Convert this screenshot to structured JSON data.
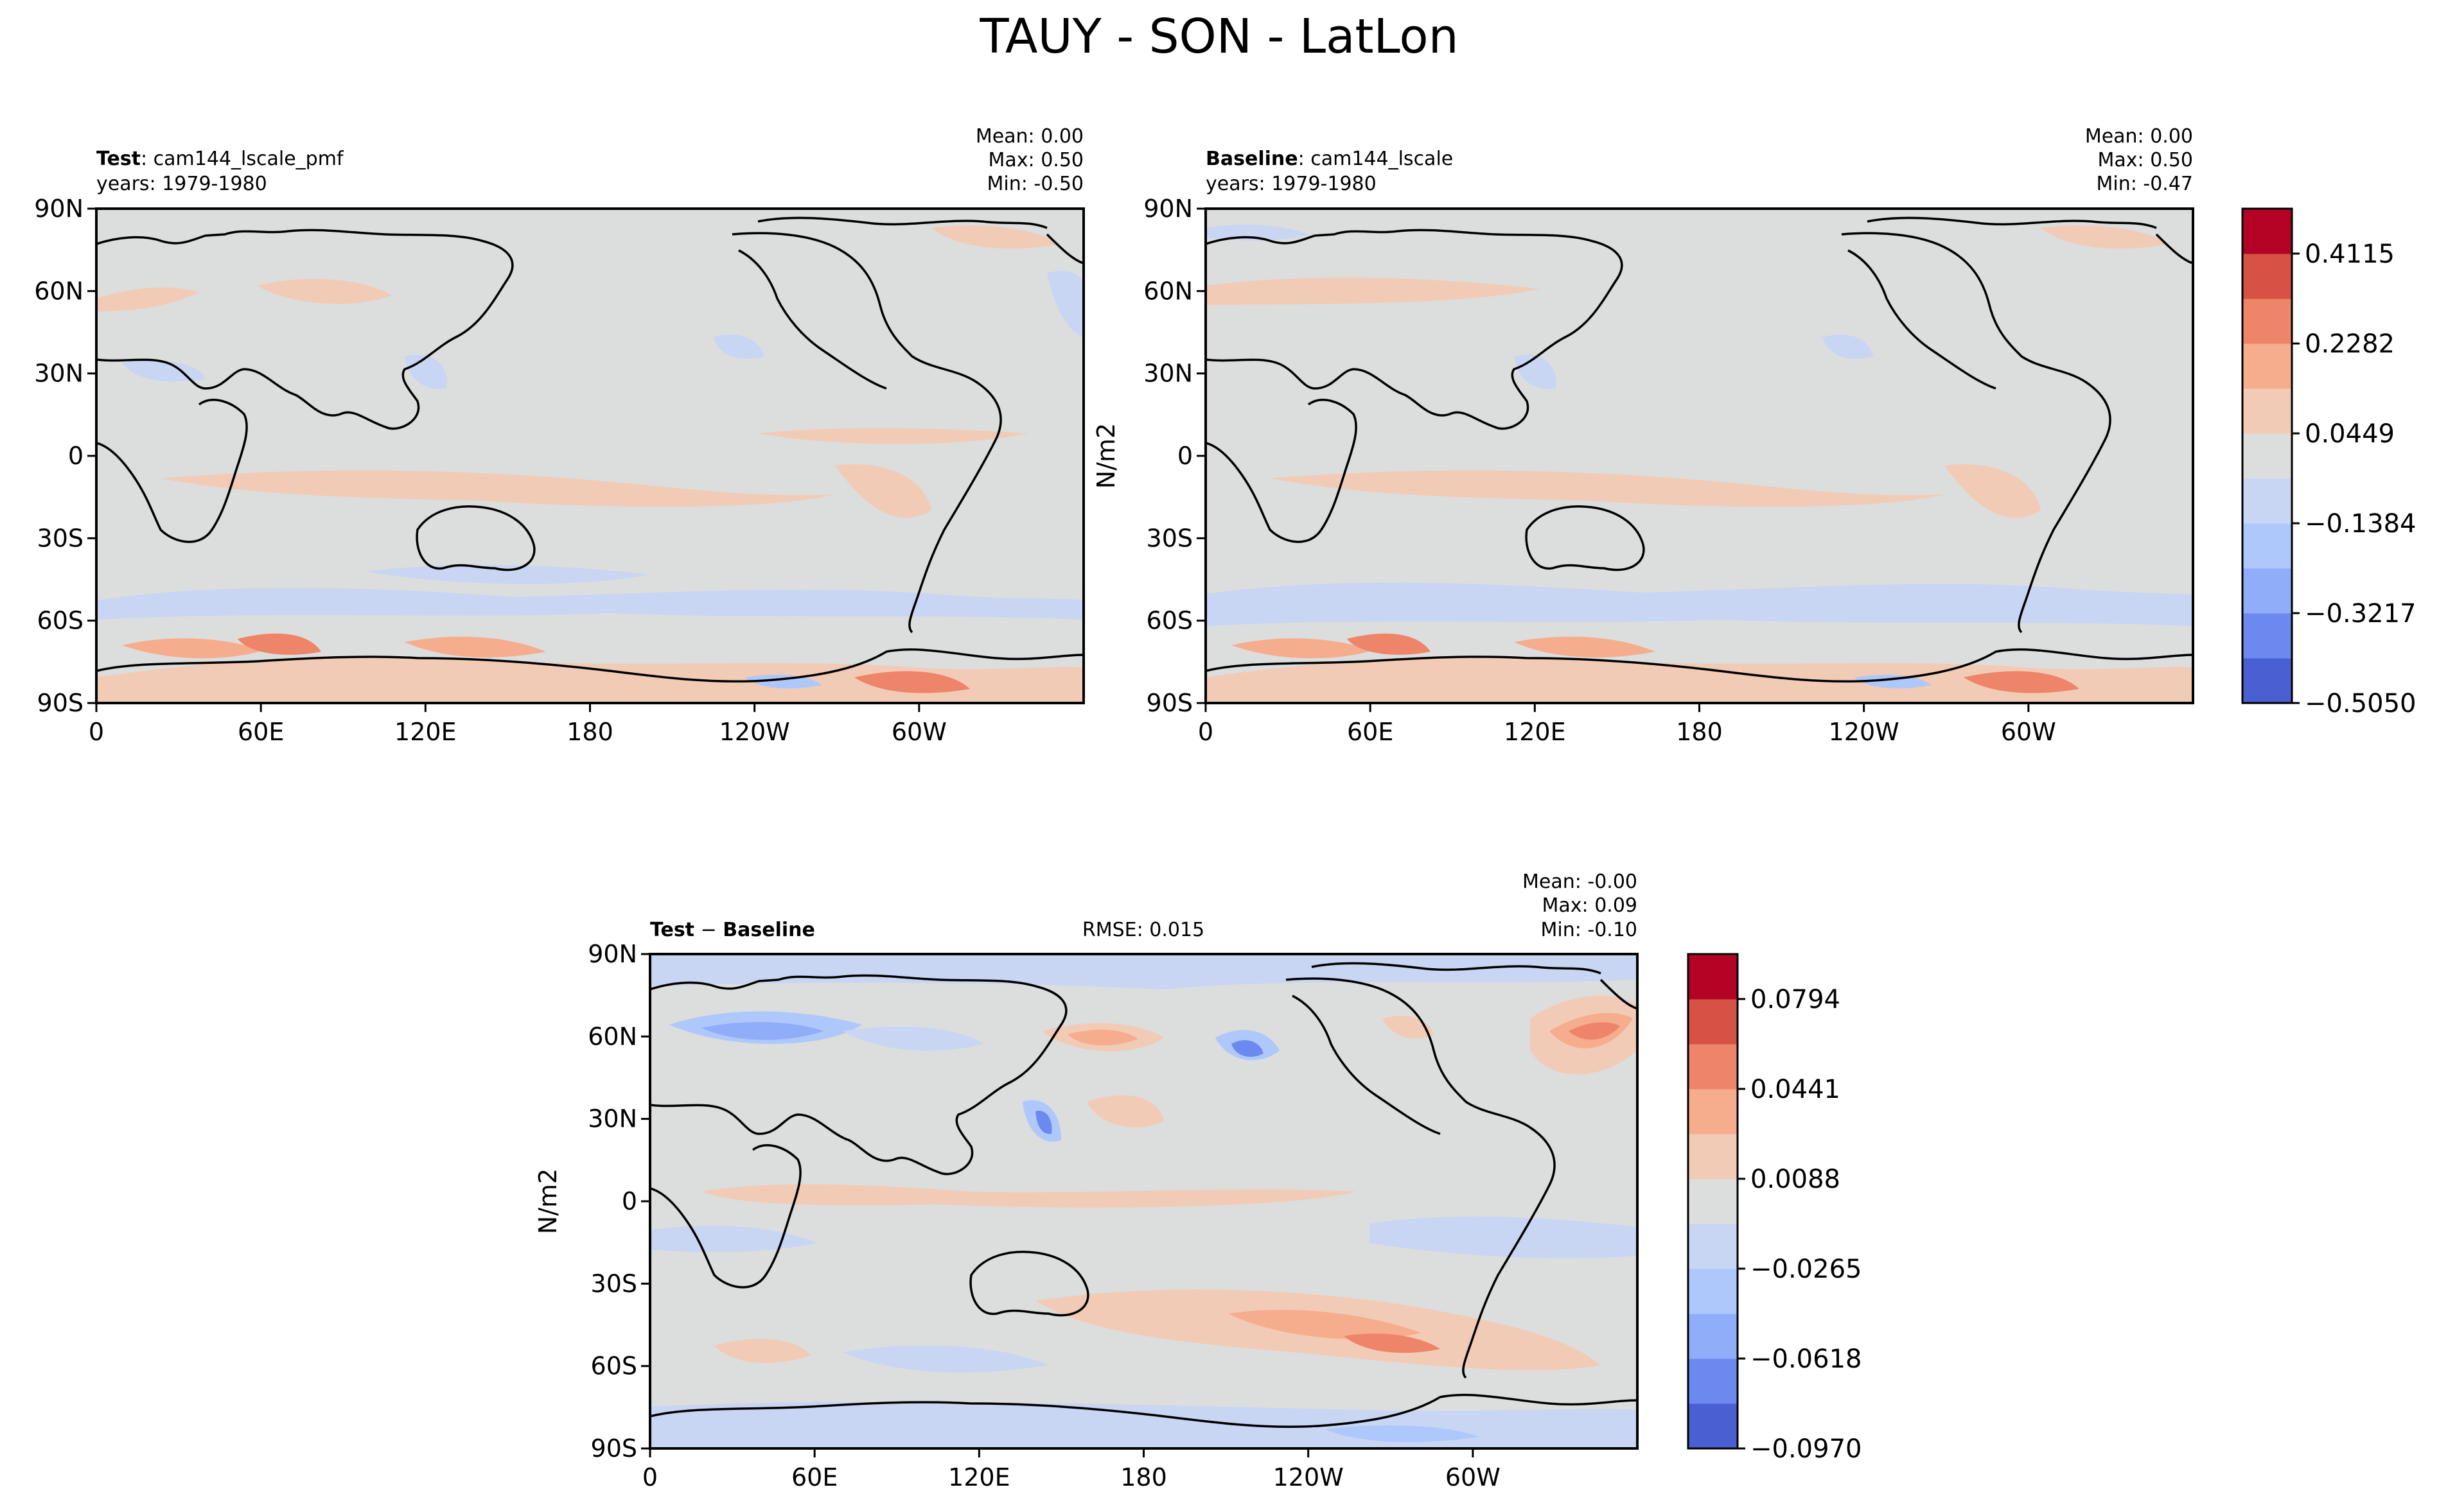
{
  "figure_title": "TAUY - SON - LatLon",
  "chart_data": [
    {
      "type": "heatmap",
      "panel": "test",
      "label_bold": "Test",
      "label_rest": ": cam144_lscale_pmf",
      "years": "years: 1979-1980",
      "stats": {
        "mean": "Mean:  0.00",
        "max": "Max:  0.50",
        "min": "Min: -0.50"
      },
      "ylabel": "",
      "x_ticks": [
        "0",
        "60E",
        "120E",
        "180",
        "120W",
        "60W"
      ],
      "y_ticks": [
        "90N",
        "60N",
        "30N",
        "0",
        "30S",
        "60S",
        "90S"
      ],
      "lon_range": [
        0,
        360
      ],
      "lat_range": [
        -90,
        90
      ]
    },
    {
      "type": "heatmap",
      "panel": "baseline",
      "label_bold": "Baseline",
      "label_rest": ": cam144_lscale",
      "years": "years: 1979-1980",
      "stats": {
        "mean": "Mean:  0.00",
        "max": "Max:  0.50",
        "min": "Min: -0.47"
      },
      "ylabel": "N/m2",
      "x_ticks": [
        "0",
        "60E",
        "120E",
        "180",
        "120W",
        "60W"
      ],
      "y_ticks": [
        "90N",
        "60N",
        "30N",
        "0",
        "30S",
        "60S",
        "90S"
      ],
      "lon_range": [
        0,
        360
      ],
      "lat_range": [
        -90,
        90
      ]
    },
    {
      "type": "heatmap",
      "panel": "diff",
      "label_bold": "Test",
      "label_minus": " − ",
      "label_bold2": "Baseline",
      "rmse": "RMSE: 0.015",
      "stats": {
        "mean": "Mean: -0.00",
        "max": "Max:  0.09",
        "min": "Min: -0.10"
      },
      "ylabel": "N/m2",
      "x_ticks": [
        "0",
        "60E",
        "120E",
        "180",
        "120W",
        "60W"
      ],
      "y_ticks": [
        "90N",
        "60N",
        "30N",
        "0",
        "30S",
        "60S",
        "90S"
      ],
      "lon_range": [
        0,
        360
      ],
      "lat_range": [
        -90,
        90
      ]
    }
  ],
  "colorbars": {
    "main": {
      "ticks": [
        "0.4115",
        "0.2282",
        "0.0449",
        "−0.1384",
        "−0.3217",
        "−0.5050"
      ],
      "levels": [
        -0.505,
        0.5
      ]
    },
    "diff": {
      "ticks": [
        "0.0794",
        "0.0441",
        "0.0088",
        "−0.0265",
        "−0.0618",
        "−0.0970"
      ],
      "levels": [
        -0.097,
        0.097
      ]
    }
  },
  "colors": {
    "neutral": "#dcdddd",
    "colormap": [
      "#4a5fd1",
      "#6b89ee",
      "#8fadf9",
      "#aec8fc",
      "#c8d6f3",
      "#dcdddd",
      "#f2cbb7",
      "#f5ad8e",
      "#ee8468",
      "#d65244",
      "#b40426"
    ]
  }
}
